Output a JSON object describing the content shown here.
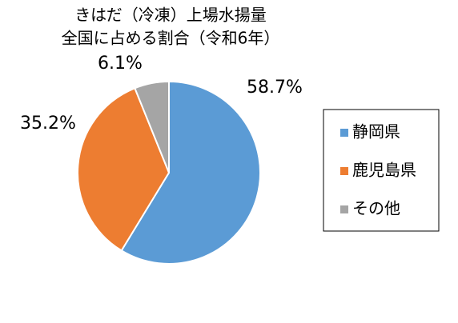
{
  "chart_data": {
    "type": "pie",
    "title": [
      "きはだ（冷凍）上場水揚量",
      "全国に占める割合（令和6年）"
    ],
    "categories": [
      "静岡県",
      "鹿児島県",
      "その他"
    ],
    "values": [
      58.7,
      35.2,
      6.1
    ],
    "value_labels": [
      "58.7%",
      "35.2%",
      "6.1%"
    ],
    "colors": [
      "#5b9bd5",
      "#ed7d31",
      "#a5a5a5"
    ],
    "legend": "right"
  }
}
